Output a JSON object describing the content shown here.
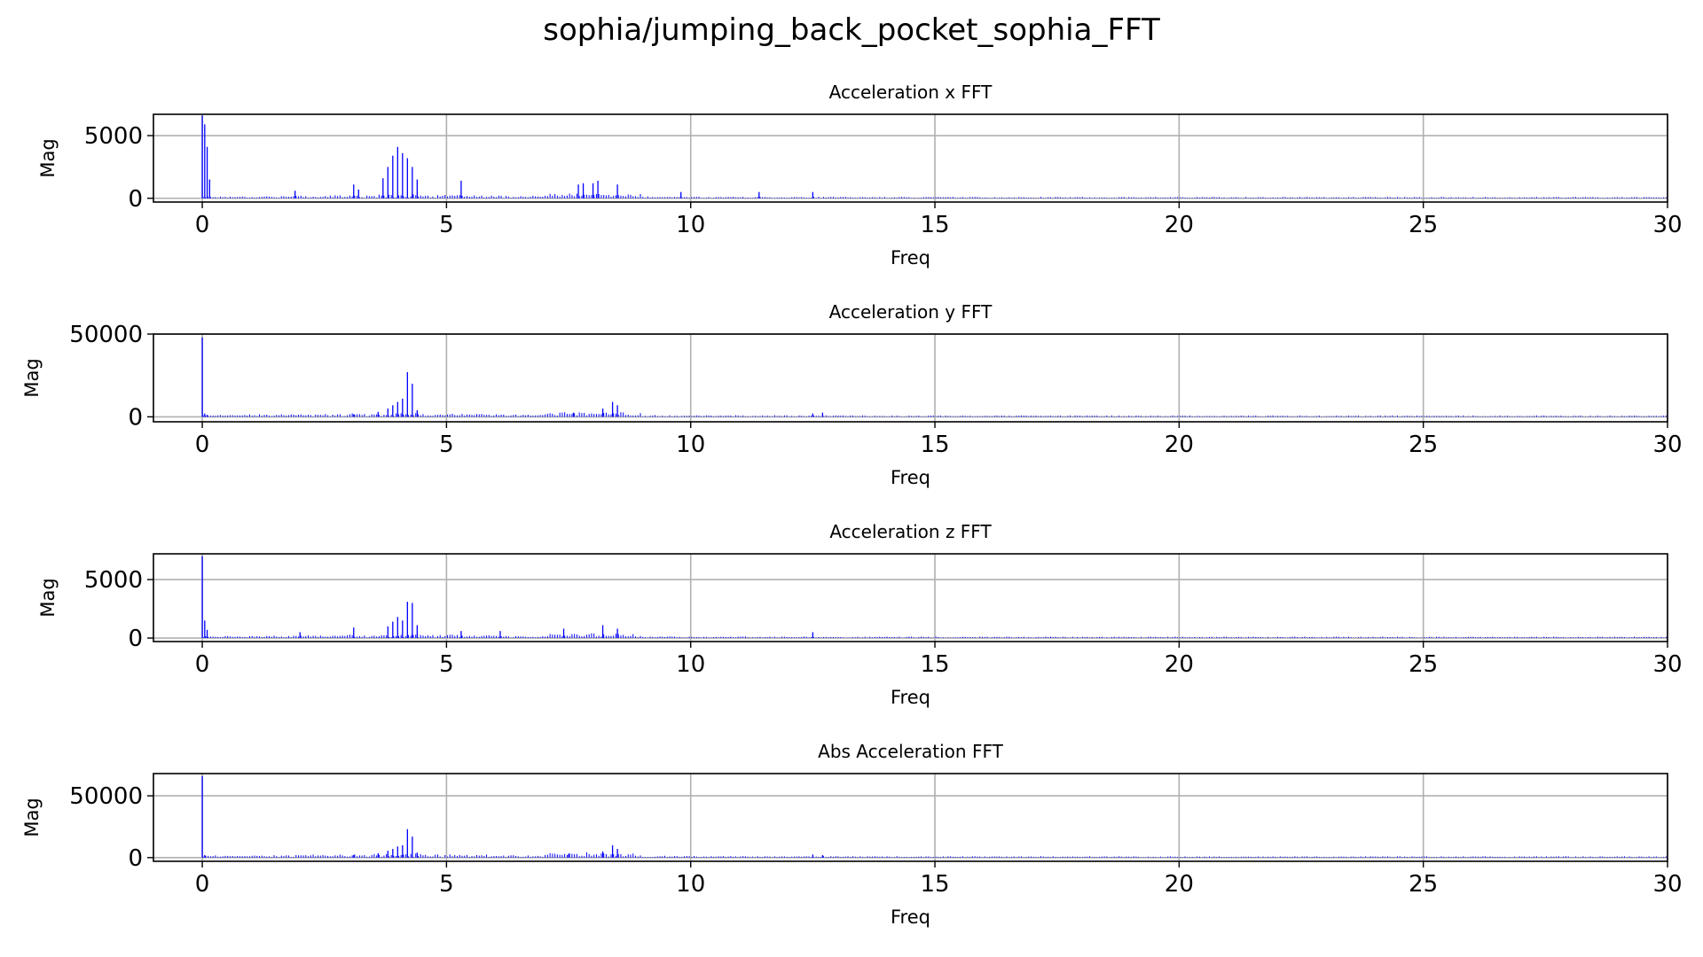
{
  "figure": {
    "title": "sophia/jumping_back_pocket_sophia_FFT"
  },
  "colors": {
    "line": "#0000ff",
    "grid": "#b0b0b0",
    "axes": "#000000",
    "background": "#ffffff"
  },
  "chart_data": [
    {
      "type": "bar",
      "title": "Acceleration x FFT",
      "xlabel": "Freq",
      "ylabel": "Mag",
      "xlim": [
        -1,
        30
      ],
      "ylim": [
        -300,
        6700
      ],
      "xticks": [
        "0",
        "5",
        "10",
        "15",
        "20",
        "25",
        "30"
      ],
      "yticks": [
        "0",
        "5000"
      ],
      "grid": true,
      "peaks": [
        {
          "x": 0.0,
          "y": 6600
        },
        {
          "x": 0.05,
          "y": 5900
        },
        {
          "x": 0.1,
          "y": 4100
        },
        {
          "x": 0.15,
          "y": 1500
        },
        {
          "x": 1.9,
          "y": 600
        },
        {
          "x": 3.1,
          "y": 1100
        },
        {
          "x": 3.2,
          "y": 700
        },
        {
          "x": 3.7,
          "y": 1600
        },
        {
          "x": 3.8,
          "y": 2500
        },
        {
          "x": 3.9,
          "y": 3400
        },
        {
          "x": 4.0,
          "y": 4100
        },
        {
          "x": 4.1,
          "y": 3600
        },
        {
          "x": 4.2,
          "y": 3200
        },
        {
          "x": 4.3,
          "y": 2500
        },
        {
          "x": 4.4,
          "y": 1500
        },
        {
          "x": 5.3,
          "y": 1400
        },
        {
          "x": 7.7,
          "y": 1100
        },
        {
          "x": 7.8,
          "y": 1200
        },
        {
          "x": 8.0,
          "y": 1200
        },
        {
          "x": 8.1,
          "y": 1400
        },
        {
          "x": 8.5,
          "y": 1100
        },
        {
          "x": 9.8,
          "y": 500
        },
        {
          "x": 11.4,
          "y": 500
        },
        {
          "x": 12.5,
          "y": 500
        }
      ]
    },
    {
      "type": "bar",
      "title": "Acceleration y FFT",
      "xlabel": "Freq",
      "ylabel": "Mag",
      "xlim": [
        -1,
        30
      ],
      "ylim": [
        -3000,
        50000
      ],
      "xticks": [
        "0",
        "5",
        "10",
        "15",
        "20",
        "25",
        "30"
      ],
      "yticks": [
        "0",
        "50000"
      ],
      "grid": true,
      "peaks": [
        {
          "x": 0.0,
          "y": 48000
        },
        {
          "x": 0.05,
          "y": 2000
        },
        {
          "x": 0.1,
          "y": 1200
        },
        {
          "x": 3.1,
          "y": 1500
        },
        {
          "x": 3.6,
          "y": 3000
        },
        {
          "x": 3.8,
          "y": 5000
        },
        {
          "x": 3.9,
          "y": 7000
        },
        {
          "x": 4.0,
          "y": 9000
        },
        {
          "x": 4.1,
          "y": 11000
        },
        {
          "x": 4.2,
          "y": 27000
        },
        {
          "x": 4.3,
          "y": 20000
        },
        {
          "x": 4.4,
          "y": 4000
        },
        {
          "x": 7.6,
          "y": 2500
        },
        {
          "x": 8.2,
          "y": 5000
        },
        {
          "x": 8.4,
          "y": 9000
        },
        {
          "x": 8.5,
          "y": 7000
        },
        {
          "x": 12.5,
          "y": 2000
        },
        {
          "x": 12.7,
          "y": 2500
        }
      ]
    },
    {
      "type": "bar",
      "title": "Acceleration z FFT",
      "xlabel": "Freq",
      "ylabel": "Mag",
      "xlim": [
        -1,
        30
      ],
      "ylim": [
        -300,
        7200
      ],
      "xticks": [
        "0",
        "5",
        "10",
        "15",
        "20",
        "25",
        "30"
      ],
      "yticks": [
        "0",
        "5000"
      ],
      "grid": true,
      "peaks": [
        {
          "x": 0.0,
          "y": 7000
        },
        {
          "x": 0.05,
          "y": 1500
        },
        {
          "x": 0.1,
          "y": 700
        },
        {
          "x": 2.0,
          "y": 500
        },
        {
          "x": 3.1,
          "y": 900
        },
        {
          "x": 3.8,
          "y": 1000
        },
        {
          "x": 3.9,
          "y": 1400
        },
        {
          "x": 4.0,
          "y": 1800
        },
        {
          "x": 4.1,
          "y": 1500
        },
        {
          "x": 4.2,
          "y": 3100
        },
        {
          "x": 4.3,
          "y": 3000
        },
        {
          "x": 4.4,
          "y": 1100
        },
        {
          "x": 5.3,
          "y": 600
        },
        {
          "x": 6.1,
          "y": 600
        },
        {
          "x": 7.4,
          "y": 800
        },
        {
          "x": 8.2,
          "y": 1100
        },
        {
          "x": 8.5,
          "y": 800
        },
        {
          "x": 12.5,
          "y": 500
        }
      ]
    },
    {
      "type": "bar",
      "title": "Abs Acceleration FFT",
      "xlabel": "Freq",
      "ylabel": "Mag",
      "xlim": [
        -1,
        30
      ],
      "ylim": [
        -3000,
        68000
      ],
      "xticks": [
        "0",
        "5",
        "10",
        "15",
        "20",
        "25",
        "30"
      ],
      "yticks": [
        "0",
        "50000"
      ],
      "grid": true,
      "peaks": [
        {
          "x": 0.0,
          "y": 66000
        },
        {
          "x": 0.05,
          "y": 2000
        },
        {
          "x": 3.1,
          "y": 2000
        },
        {
          "x": 3.6,
          "y": 3500
        },
        {
          "x": 3.8,
          "y": 5500
        },
        {
          "x": 3.9,
          "y": 7000
        },
        {
          "x": 4.0,
          "y": 9000
        },
        {
          "x": 4.1,
          "y": 10000
        },
        {
          "x": 4.2,
          "y": 23000
        },
        {
          "x": 4.3,
          "y": 17000
        },
        {
          "x": 4.4,
          "y": 4000
        },
        {
          "x": 7.5,
          "y": 3000
        },
        {
          "x": 8.2,
          "y": 5000
        },
        {
          "x": 8.4,
          "y": 10000
        },
        {
          "x": 8.5,
          "y": 7000
        },
        {
          "x": 12.5,
          "y": 2500
        },
        {
          "x": 12.7,
          "y": 2000
        }
      ]
    }
  ]
}
